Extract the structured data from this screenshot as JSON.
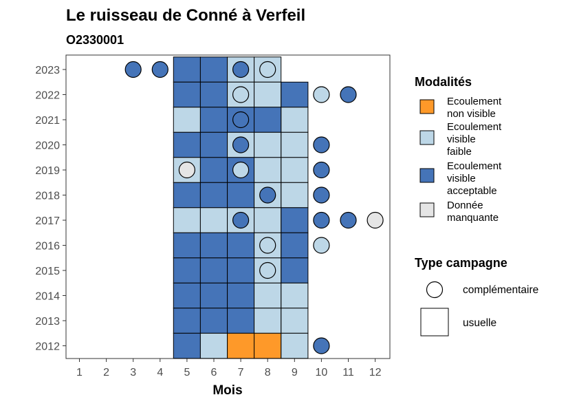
{
  "chart_data": {
    "type": "heatmap",
    "title": "Le ruisseau de Conné à Verfeil",
    "subtitle": "O2330001",
    "xlabel": "Mois",
    "ylabel": "",
    "x_ticks": [
      1,
      2,
      3,
      4,
      5,
      6,
      7,
      8,
      9,
      10,
      11,
      12
    ],
    "y_ticks": [
      2012,
      2013,
      2014,
      2015,
      2016,
      2017,
      2018,
      2019,
      2020,
      2021,
      2022,
      2023
    ],
    "grid": false,
    "legend_placement": "right",
    "modalites": {
      "title": "Modalités",
      "items": [
        {
          "key": "nv",
          "lines": [
            "Ecoulement",
            "non visible"
          ],
          "color": "#FE9929"
        },
        {
          "key": "vf",
          "lines": [
            "Ecoulement",
            "visible",
            "faible"
          ],
          "color": "#BDD7E7"
        },
        {
          "key": "va",
          "lines": [
            "Ecoulement",
            "visible",
            "acceptable"
          ],
          "color": "#4574B8"
        },
        {
          "key": "dm",
          "lines": [
            "Donnée",
            "manquante"
          ],
          "color": "#E5E5E5"
        }
      ]
    },
    "type_campagne": {
      "title": "Type campagne",
      "items": [
        {
          "key": "complementaire",
          "label": "complémentaire",
          "shape": "circle"
        },
        {
          "key": "usuelle",
          "label": "usuelle",
          "shape": "square"
        }
      ]
    },
    "usuelle": [
      {
        "year": 2023,
        "months": {
          "5": "va",
          "6": "va",
          "7": "vf",
          "8": "vf"
        }
      },
      {
        "year": 2022,
        "months": {
          "5": "va",
          "6": "va",
          "7": "vf",
          "8": "vf",
          "9": "va"
        }
      },
      {
        "year": 2021,
        "months": {
          "5": "vf",
          "6": "va",
          "7": "va",
          "8": "va",
          "9": "vf"
        }
      },
      {
        "year": 2020,
        "months": {
          "5": "va",
          "6": "va",
          "7": "vf",
          "8": "vf",
          "9": "vf"
        }
      },
      {
        "year": 2019,
        "months": {
          "5": "vf",
          "6": "va",
          "7": "va",
          "8": "vf",
          "9": "vf"
        }
      },
      {
        "year": 2018,
        "months": {
          "5": "va",
          "6": "va",
          "7": "va",
          "8": "vf",
          "9": "vf"
        }
      },
      {
        "year": 2017,
        "months": {
          "5": "vf",
          "6": "vf",
          "7": "vf",
          "8": "vf",
          "9": "va"
        }
      },
      {
        "year": 2016,
        "months": {
          "5": "va",
          "6": "va",
          "7": "va",
          "8": "vf",
          "9": "va"
        }
      },
      {
        "year": 2015,
        "months": {
          "5": "va",
          "6": "va",
          "7": "va",
          "8": "vf",
          "9": "va"
        }
      },
      {
        "year": 2014,
        "months": {
          "5": "va",
          "6": "va",
          "7": "va",
          "8": "vf",
          "9": "vf"
        }
      },
      {
        "year": 2013,
        "months": {
          "5": "va",
          "6": "va",
          "7": "va",
          "8": "vf",
          "9": "vf"
        }
      },
      {
        "year": 2012,
        "months": {
          "5": "va",
          "6": "vf",
          "7": "nv",
          "8": "nv",
          "9": "vf"
        }
      }
    ],
    "complementaire": [
      {
        "year": 2023,
        "month": 3,
        "value": "va"
      },
      {
        "year": 2023,
        "month": 4,
        "value": "va"
      },
      {
        "year": 2023,
        "month": 7,
        "value": "va"
      },
      {
        "year": 2023,
        "month": 8,
        "value": "vf"
      },
      {
        "year": 2022,
        "month": 7,
        "value": "vf"
      },
      {
        "year": 2022,
        "month": 10,
        "value": "vf"
      },
      {
        "year": 2022,
        "month": 11,
        "value": "va"
      },
      {
        "year": 2021,
        "month": 7,
        "value": "va"
      },
      {
        "year": 2020,
        "month": 7,
        "value": "va"
      },
      {
        "year": 2020,
        "month": 10,
        "value": "va"
      },
      {
        "year": 2019,
        "month": 5,
        "value": "dm"
      },
      {
        "year": 2019,
        "month": 7,
        "value": "vf"
      },
      {
        "year": 2019,
        "month": 10,
        "value": "va"
      },
      {
        "year": 2018,
        "month": 8,
        "value": "va"
      },
      {
        "year": 2018,
        "month": 10,
        "value": "va"
      },
      {
        "year": 2017,
        "month": 7,
        "value": "va"
      },
      {
        "year": 2017,
        "month": 10,
        "value": "va"
      },
      {
        "year": 2017,
        "month": 11,
        "value": "va"
      },
      {
        "year": 2017,
        "month": 12,
        "value": "dm"
      },
      {
        "year": 2016,
        "month": 8,
        "value": "vf"
      },
      {
        "year": 2016,
        "month": 10,
        "value": "vf"
      },
      {
        "year": 2015,
        "month": 8,
        "value": "vf"
      },
      {
        "year": 2012,
        "month": 10,
        "value": "va"
      }
    ]
  }
}
